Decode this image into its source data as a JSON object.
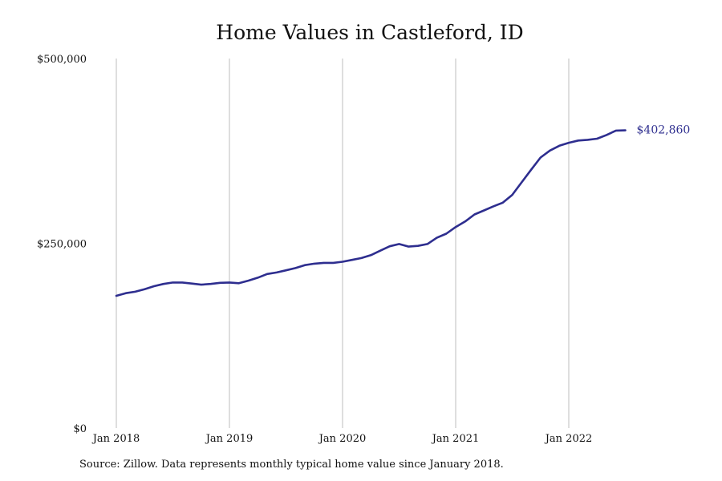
{
  "chart_data": {
    "type": "line",
    "title": "Home Values in Castleford, ID",
    "source": "Source: Zillow. Data represents monthly typical home value since January 2018.",
    "xlabel": "",
    "ylabel": "",
    "x_ticks": [
      "Jan 2018",
      "Jan 2019",
      "Jan 2020",
      "Jan 2021",
      "Jan 2022"
    ],
    "y_ticks": [
      "$0",
      "$250,000",
      "$500,000"
    ],
    "ylim": [
      0,
      500000
    ],
    "grid": "vertical lines at January of each year",
    "end_label": "$402,860",
    "line_color": "#2e2e8f",
    "series": [
      {
        "values": [
          179000,
          182500,
          184500,
          188000,
          192000,
          195000,
          197000,
          197000,
          195500,
          194000,
          195000,
          196500,
          197000,
          196000,
          199500,
          203500,
          208500,
          210500,
          213500,
          216500,
          220500,
          222500,
          223500,
          223500,
          225000,
          227500,
          230000,
          234000,
          240000,
          246000,
          249000,
          245500,
          246500,
          249000,
          257500,
          263000,
          272000,
          279500,
          289000,
          294500,
          300000,
          305000,
          315500,
          332500,
          349500,
          366000,
          375500,
          382000,
          386000,
          389000,
          390000,
          391500,
          396500,
          402500,
          402860
        ]
      }
    ]
  }
}
